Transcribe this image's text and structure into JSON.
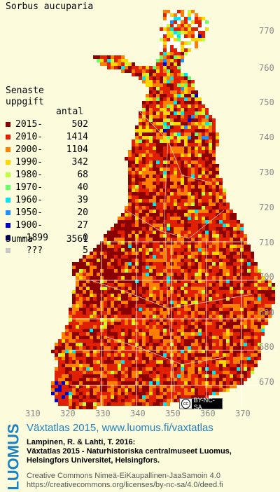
{
  "map": {
    "species": "Sorbus aucuparia",
    "legend_title_line1": "Senaste",
    "legend_title_line2": "uppgift",
    "count_header": "antal",
    "legend": [
      {
        "label": "2015-",
        "count": "502",
        "color": "#8b0000"
      },
      {
        "label": "2010-",
        "count": "1414",
        "color": "#e02000"
      },
      {
        "label": "2000-",
        "count": "1104",
        "color": "#ff7f00"
      },
      {
        "label": "1990-",
        "count": "342",
        "color": "#ffd700"
      },
      {
        "label": "1980-",
        "count": "68",
        "color": "#c0ff3e"
      },
      {
        "label": "1970-",
        "count": "40",
        "color": "#66ff66"
      },
      {
        "label": "1960-",
        "count": "39",
        "color": "#00e5ee"
      },
      {
        "label": "1950-",
        "count": "20",
        "color": "#1e90ff"
      },
      {
        "label": "1900-",
        "count": "27",
        "color": "#0000cd"
      },
      {
        "label": " -1899",
        "count": "0",
        "color": "#00006b"
      },
      {
        "label": "  ???",
        "count": "5",
        "color": "#c8c8c8"
      }
    ],
    "summa_label": "Summa",
    "summa_value": "3561",
    "y_ticks": [
      "770",
      "760",
      "750",
      "740",
      "730",
      "720",
      "710",
      "700",
      "690",
      "680",
      "670"
    ],
    "x_ticks": [
      "310",
      "320",
      "330",
      "340",
      "350",
      "360",
      "370"
    ],
    "cc_badge_text": "BY-NC-SA",
    "cc_circle_text": "cc"
  },
  "footer": {
    "logo": "LUOMUS",
    "heading": "Växtatlas 2015, www.luomus.fi/vaxtatlas",
    "citation_line1": "Lampinen, R. & Lahti, T. 2016:",
    "citation_line2": "Växtatlas 2015 - Naturhistoriska centralmuseet Luomus,",
    "citation_line3": "Helsingfors Universitet, Helsingfors.",
    "license_line1": "Creative Commons Nimeä-EiKaupallinen-JaaSamoin 4.0",
    "license_line2": "https://creativecommons.org/licenses/by-nc-sa/4.0/deed.fi"
  }
}
